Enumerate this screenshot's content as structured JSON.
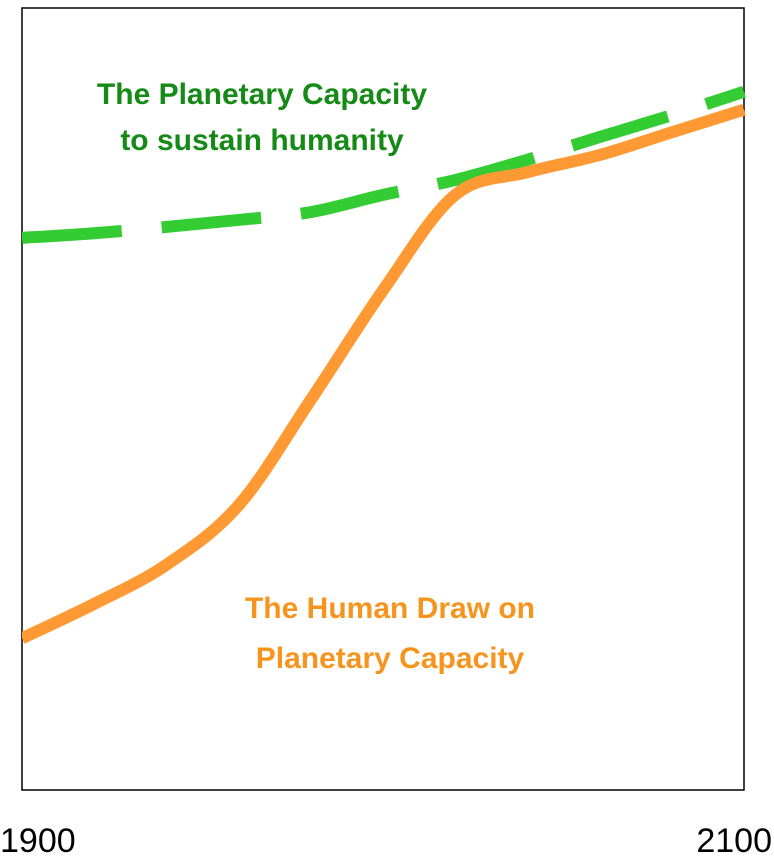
{
  "chart_data": {
    "type": "line",
    "x": [
      1900,
      1920,
      1940,
      1960,
      1980,
      2000,
      2020,
      2040,
      2060,
      2080,
      2100
    ],
    "xlim": [
      1900,
      2100
    ],
    "xticks": [
      1900,
      2100
    ],
    "ylim": [
      0,
      100
    ],
    "series": [
      {
        "color": "#33cc33",
        "dashed": true,
        "values": [
          70.6,
          71.2,
          72.0,
          72.9,
          73.9,
          76.1,
          78.0,
          80.6,
          83.5,
          86.3,
          89.3
        ]
      },
      {
        "color": "#ff9933",
        "dashed": false,
        "values": [
          19.4,
          23.8,
          28.8,
          36.4,
          49.9,
          63.9,
          76.1,
          79.0,
          81.2,
          84.1,
          87.0
        ]
      }
    ],
    "annotations": [
      {
        "lines": [
          "The Planetary Capacity",
          "to sustain humanity"
        ],
        "color": "#168a16"
      },
      {
        "lines": [
          "The Human Draw on",
          "Planetary Capacity"
        ],
        "color": "#f7941d"
      }
    ]
  }
}
